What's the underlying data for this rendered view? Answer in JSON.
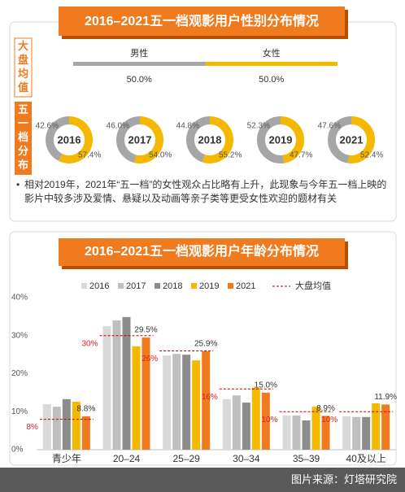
{
  "chart_data": [
    {
      "type": "donut",
      "title": "2016–2021五一档观影用户性别分布情况",
      "row_labels": [
        "大盘均值",
        "五一档分布"
      ],
      "benchmark": {
        "categories": [
          "男性",
          "女性"
        ],
        "values": [
          50.0,
          50.0
        ],
        "value_labels": [
          "50.0%",
          "50.0%"
        ],
        "colors": [
          "#a6a6a6",
          "#f5b800"
        ]
      },
      "categories": [
        "2016",
        "2017",
        "2018",
        "2019",
        "2021"
      ],
      "series": [
        {
          "color": "#a6a6a6",
          "values": [
            42.6,
            46.0,
            44.8,
            52.3,
            47.6
          ],
          "value_labels": [
            "42.6%",
            "46.0%",
            "44.8%",
            "52.3%",
            "47.6%"
          ]
        },
        {
          "color": "#f5b800",
          "values": [
            57.4,
            54.0,
            55.2,
            47.7,
            52.4
          ],
          "value_labels": [
            "57.4%",
            "54.0%",
            "55.2%",
            "47.7%",
            "52.4%"
          ]
        }
      ],
      "note": "相对2019年，2021年“五一档”的女性观众占比略有上升，此现象与今年五一档上映的影片中较多涉及爱情、悬疑以及动画等亲子类等更受女性欢迎的题材有关"
    },
    {
      "type": "bar",
      "title": "2016–2021五一档观影用户年龄分布情况",
      "categories": [
        "青少年",
        "20–24",
        "25–29",
        "30–34",
        "35–39",
        "40及以上"
      ],
      "series": [
        {
          "name": "2016",
          "color": "#d9d9d9",
          "values": [
            12.0,
            32.5,
            24.8,
            13.3,
            9.0,
            8.8
          ]
        },
        {
          "name": "2017",
          "color": "#bfbfbf",
          "values": [
            11.3,
            34.0,
            25.2,
            14.3,
            9.0,
            8.6
          ]
        },
        {
          "name": "2018",
          "color": "#8c8c8c",
          "values": [
            13.3,
            34.9,
            25.0,
            12.4,
            7.7,
            8.6
          ]
        },
        {
          "name": "2019",
          "color": "#f5b800",
          "values": [
            12.6,
            27.2,
            23.5,
            16.3,
            11.3,
            12.2
          ]
        },
        {
          "name": "2021",
          "color": "#f07a1e",
          "values": [
            8.8,
            29.5,
            25.9,
            15.0,
            8.9,
            11.9
          ],
          "value_labels": [
            "8.8%",
            "29.5%",
            "25.9%",
            "15.0%",
            "8.9%",
            "11.9%"
          ]
        }
      ],
      "benchmark": {
        "name": "大盘均值",
        "color": "#c00000",
        "values": [
          8,
          30,
          26,
          16,
          10,
          10
        ],
        "value_labels": [
          "8%",
          "30%",
          "26%",
          "16%",
          "10%",
          "10%"
        ]
      },
      "ylim": [
        0,
        40
      ],
      "yticks": [
        {
          "value": 0,
          "label": "0%"
        },
        {
          "value": 10,
          "label": "10%"
        },
        {
          "value": 20,
          "label": "20%"
        },
        {
          "value": 30,
          "label": "30%"
        },
        {
          "value": 40,
          "label": "40%"
        }
      ],
      "grid": false
    }
  ],
  "source": "图片来源：灯塔研究院"
}
